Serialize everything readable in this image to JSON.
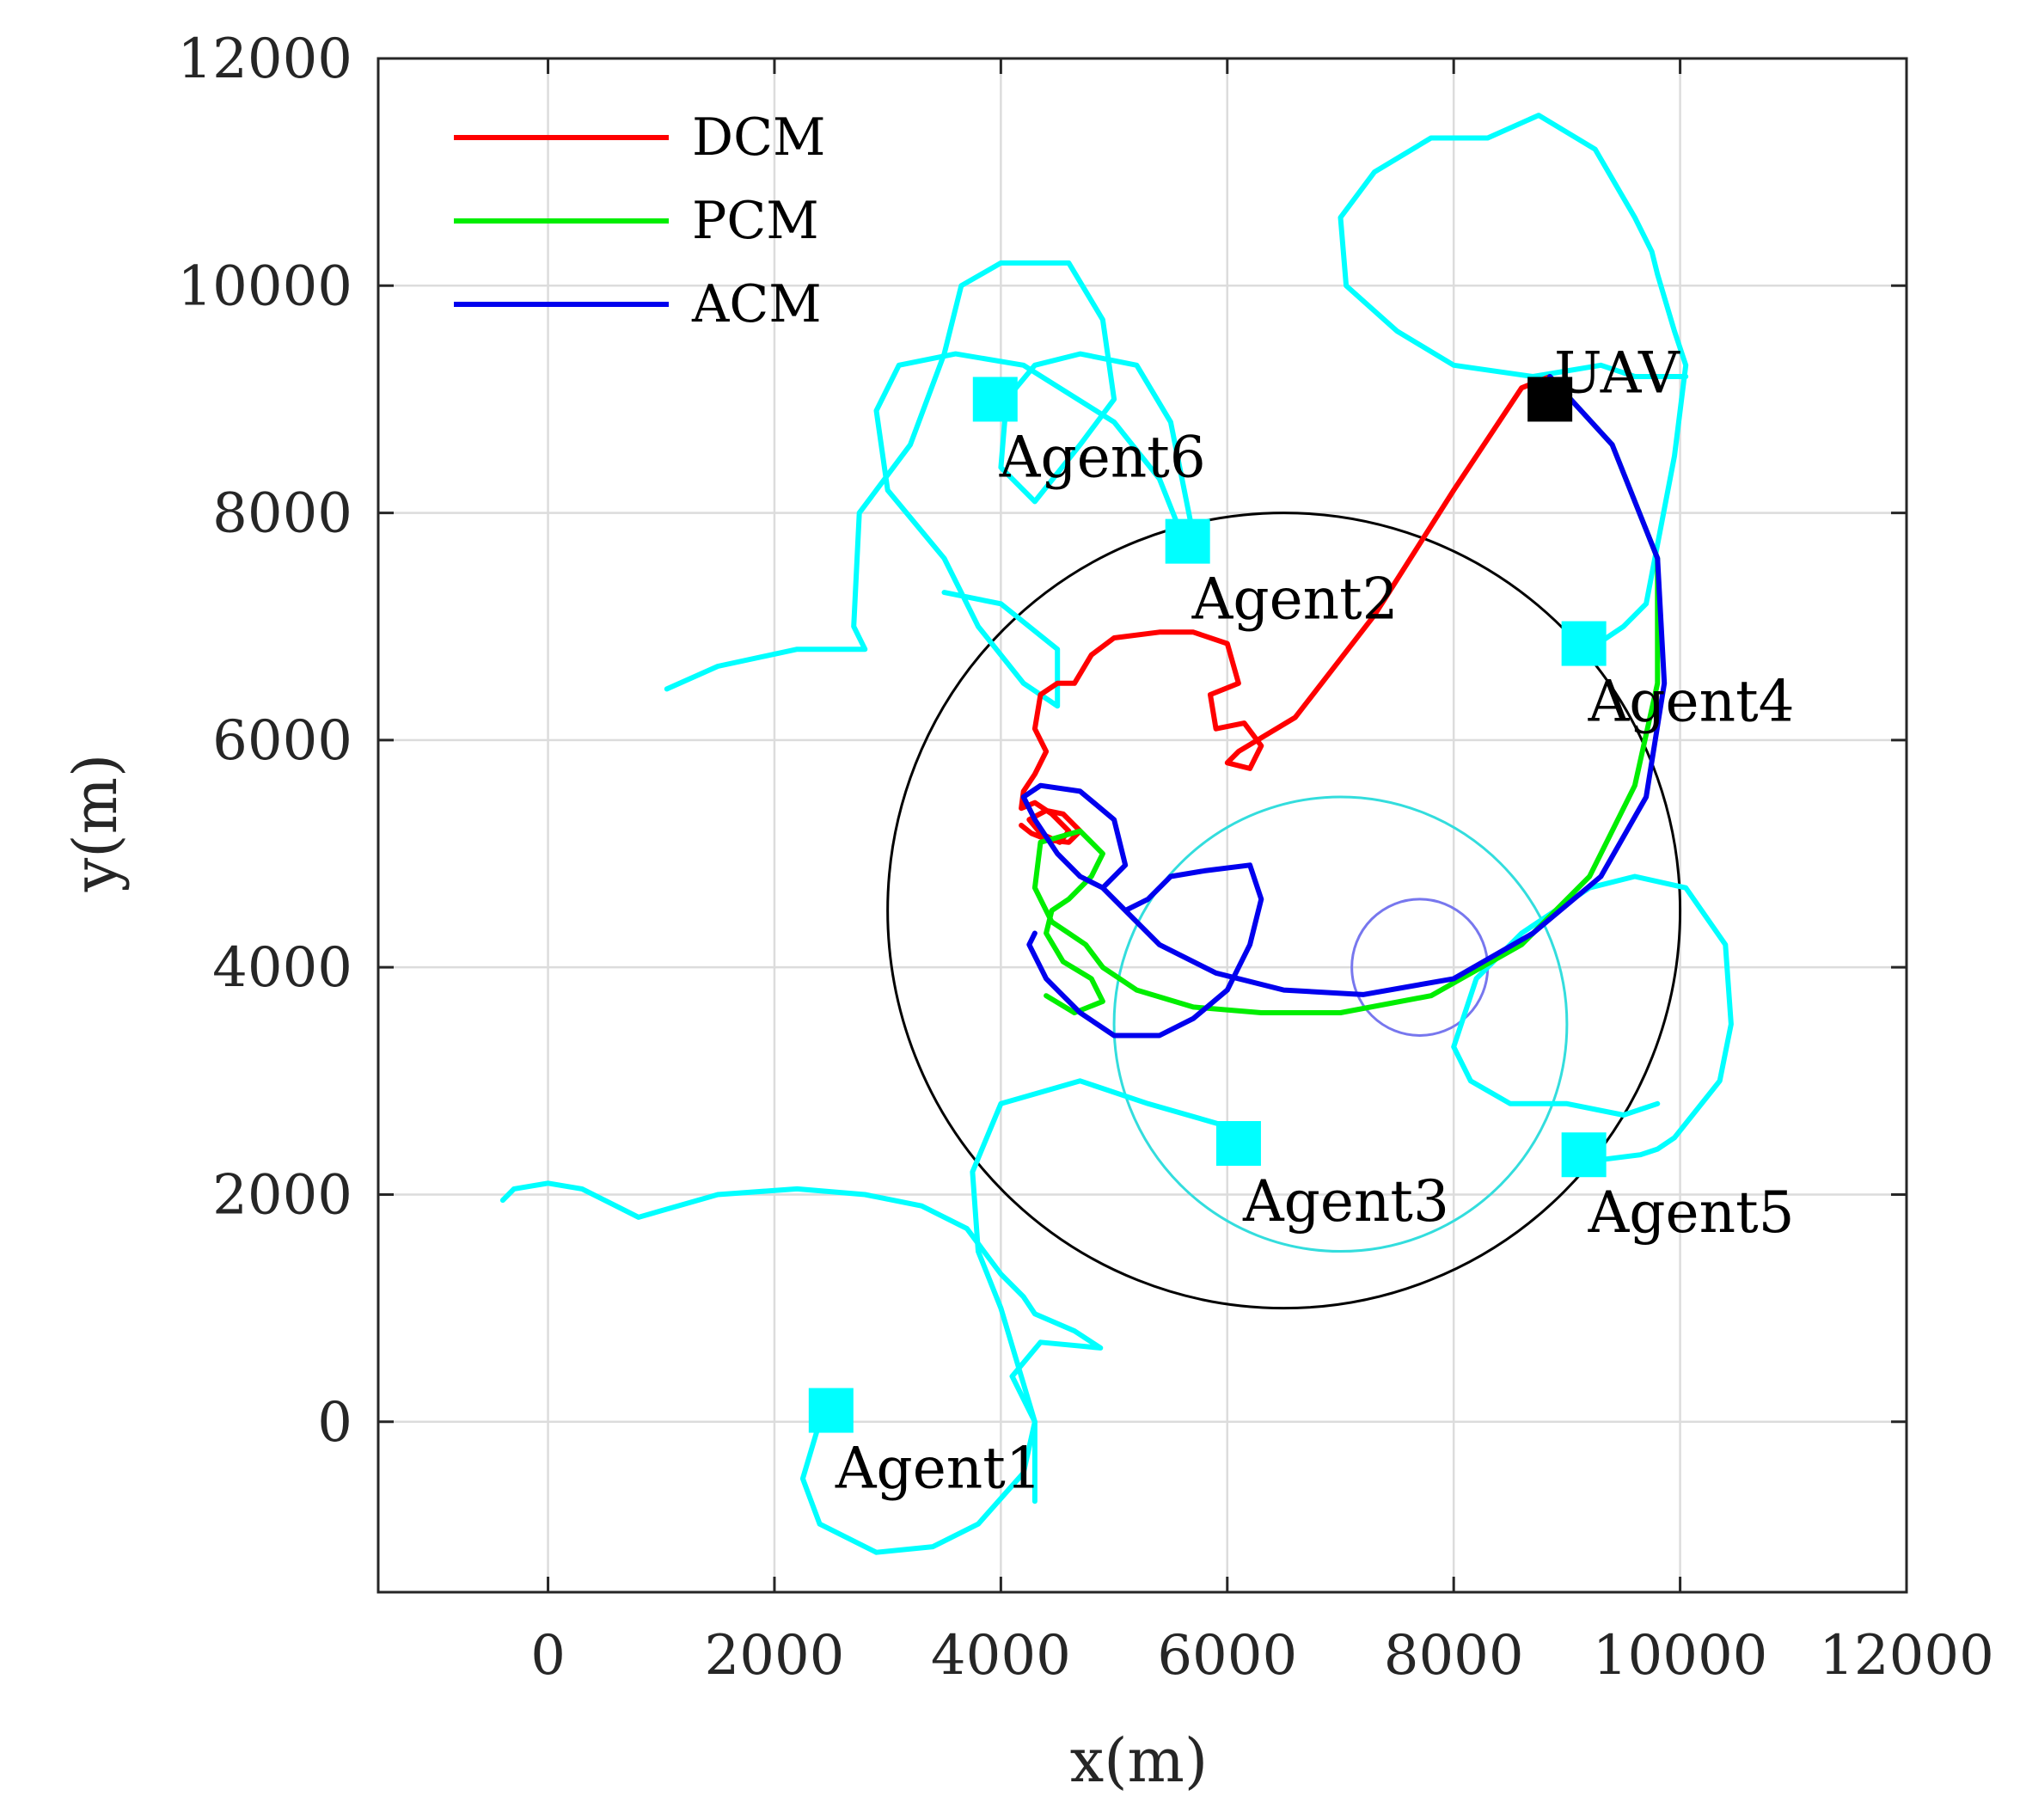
{
  "chart_data": {
    "type": "line",
    "title": "",
    "xlabel": "x(m)",
    "ylabel": "y(m)",
    "xlim": [
      -1500,
      12000
    ],
    "ylim": [
      -1500,
      12000
    ],
    "xticks": [
      0,
      2000,
      4000,
      6000,
      8000,
      10000,
      12000
    ],
    "yticks": [
      0,
      2000,
      4000,
      6000,
      8000,
      10000,
      12000
    ],
    "xtick_labels": [
      "0",
      "2000",
      "4000",
      "6000",
      "8000",
      "10000",
      "12000"
    ],
    "ytick_labels": [
      "0",
      "2000",
      "4000",
      "6000",
      "8000",
      "10000",
      "12000"
    ],
    "grid": true,
    "legend": {
      "placement": "top-left",
      "entries": [
        "DCM",
        "PCM",
        "ACM"
      ]
    },
    "colors": {
      "DCM": "#ff0000",
      "PCM": "#00ee00",
      "ACM": "#0000ee",
      "agent": "#00ffff",
      "uav": "#000000"
    },
    "series": [
      {
        "name": "DCM",
        "color": "#ff0000",
        "x": [
          8850,
          8600,
          8000,
          7300,
          6600,
          6100,
          6000,
          6200,
          6300,
          6150,
          5900,
          5850,
          6100,
          6000,
          5700,
          5400,
          5000,
          4800,
          4650,
          4500,
          4350,
          4300,
          4400,
          4300,
          4200,
          4180,
          4300,
          4450,
          4600,
          4520,
          4350,
          4250,
          4400,
          4550,
          4700,
          4600,
          4420,
          4270,
          4180
        ],
        "y": [
          9200,
          9100,
          8200,
          7100,
          6200,
          5900,
          5800,
          5750,
          5950,
          6150,
          6100,
          6400,
          6500,
          6850,
          6950,
          6950,
          6900,
          6750,
          6500,
          6500,
          6400,
          6100,
          5900,
          5700,
          5550,
          5400,
          5450,
          5350,
          5200,
          5100,
          5180,
          5300,
          5380,
          5350,
          5200,
          5100,
          5120,
          5180,
          5250
        ]
      },
      {
        "name": "PCM",
        "color": "#00ee00",
        "x": [
          8850,
          9400,
          9800,
          9800,
          9600,
          9200,
          8600,
          7800,
          7000,
          6300,
          5700,
          5200,
          4900,
          4750,
          4600,
          4450,
          4300,
          4350,
          4700,
          4900,
          4800,
          4600,
          4450,
          4400,
          4550,
          4800,
          4900,
          4650,
          4400
        ],
        "y": [
          9200,
          8600,
          7600,
          6500,
          5600,
          4800,
          4200,
          3750,
          3600,
          3600,
          3650,
          3800,
          4000,
          4200,
          4300,
          4400,
          4700,
          5100,
          5200,
          5000,
          4800,
          4600,
          4500,
          4300,
          4050,
          3900,
          3700,
          3600,
          3750
        ]
      },
      {
        "name": "ACM",
        "color": "#0000ee",
        "x": [
          8850,
          9400,
          9800,
          9860,
          9700,
          9300,
          8700,
          8000,
          7200,
          6500,
          5900,
          5400,
          5100,
          4900,
          4700,
          4500,
          4300,
          4200,
          4350,
          4700,
          5000,
          5100,
          4900,
          5100,
          5300,
          5500,
          5800,
          6200,
          6300,
          6200,
          6000,
          5700,
          5400,
          5000,
          4700,
          4500,
          4400,
          4350,
          4250,
          4300
        ],
        "y": [
          9200,
          8600,
          7600,
          6500,
          5500,
          4800,
          4300,
          3900,
          3760,
          3800,
          3950,
          4200,
          4500,
          4700,
          4800,
          5000,
          5300,
          5500,
          5600,
          5550,
          5300,
          4900,
          4700,
          4500,
          4600,
          4800,
          4850,
          4900,
          4600,
          4200,
          3800,
          3550,
          3400,
          3400,
          3600,
          3800,
          3900,
          4000,
          4200,
          4300
        ]
      }
    ],
    "agent_tracks": [
      {
        "x": [
          2400,
          2250,
          2400,
          2900,
          3400,
          3800,
          4200,
          4300,
          4100,
          4350,
          4880,
          4650,
          4300,
          4200,
          4000,
          3700,
          3300,
          2800,
          2200,
          1500,
          800,
          600,
          300,
          0,
          -300,
          -400
        ],
        "y": [
          0,
          -500,
          -900,
          -1150,
          -1100,
          -900,
          -450,
          0,
          400,
          700,
          650,
          800,
          950,
          1100,
          1300,
          1700,
          1900,
          2000,
          2050,
          2000,
          1800,
          1900,
          2050,
          2100,
          2050,
          1950
        ]
      },
      {
        "x": [
          4300,
          4300,
          4000,
          3800,
          3750,
          4000,
          4700,
          5300,
          6000,
          6100
        ],
        "y": [
          -700,
          0,
          1000,
          1500,
          2200,
          2800,
          3000,
          2800,
          2600,
          2450
        ]
      },
      {
        "x": [
          1050,
          1500,
          2200,
          2800,
          2700,
          2750,
          3200,
          3500,
          3650,
          4000,
          4600,
          4900,
          5000,
          4700,
          4300,
          4000,
          4050,
          4300,
          4700,
          5200,
          5500,
          5700
        ],
        "y": [
          6450,
          6650,
          6800,
          6800,
          7000,
          8000,
          8600,
          9400,
          10000,
          10200,
          10200,
          9700,
          9000,
          8600,
          8100,
          8400,
          9000,
          9300,
          9400,
          9300,
          8800,
          7800
        ]
      },
      {
        "x": [
          3500,
          4000,
          4500,
          4500,
          4200,
          3800,
          3500,
          3000,
          2900,
          3100,
          3600,
          4200,
          5000,
          5400,
          5600
        ],
        "y": [
          7300,
          7200,
          6800,
          6300,
          6500,
          7000,
          7600,
          8200,
          8900,
          9300,
          9400,
          9300,
          8800,
          8300,
          7800
        ]
      },
      {
        "x": [
          9200,
          9500,
          9700,
          9950,
          10050,
          9950,
          9800,
          9750,
          9600,
          9250,
          8750,
          8300,
          7800,
          7300,
          7000,
          7050,
          7500,
          8000,
          8700,
          9300,
          9600,
          9800,
          9950,
          10050,
          9700
        ],
        "y": [
          6800,
          7000,
          7200,
          8500,
          9300,
          9600,
          10100,
          10300,
          10600,
          11200,
          11500,
          11300,
          11300,
          11000,
          10600,
          10000,
          9600,
          9300,
          9200,
          9300,
          9200,
          9200,
          9200,
          9200,
          9200
        ]
      },
      {
        "x": [
          9250,
          9650,
          9800,
          9950,
          10350,
          10450,
          10400,
          10050,
          9600,
          9200,
          8600,
          8200,
          8000,
          8150,
          8500,
          9000,
          9500,
          9800
        ],
        "y": [
          2300,
          2350,
          2400,
          2500,
          3000,
          3500,
          4200,
          4700,
          4800,
          4700,
          4300,
          3900,
          3300,
          3000,
          2800,
          2800,
          2700,
          2800
        ]
      }
    ],
    "agents": [
      {
        "label": "Agent1",
        "x": 2500,
        "y": 100
      },
      {
        "label": "Agent2",
        "x": 5650,
        "y": 7750
      },
      {
        "label": "Agent3",
        "x": 6100,
        "y": 2450
      },
      {
        "label": "Agent4",
        "x": 9150,
        "y": 6850
      },
      {
        "label": "Agent5",
        "x": 9150,
        "y": 2350
      },
      {
        "label": "Agent6",
        "x": 3950,
        "y": 9000
      }
    ],
    "uav": {
      "label": "UAV",
      "x": 8850,
      "y": 9000
    },
    "circles": [
      {
        "cx": 6500,
        "cy": 4500,
        "r": 3500,
        "color": "#000000"
      },
      {
        "cx": 7000,
        "cy": 3500,
        "r": 2000,
        "color": "#33dddd"
      },
      {
        "cx": 7700,
        "cy": 4000,
        "r": 600,
        "color": "#7777ee"
      }
    ]
  }
}
